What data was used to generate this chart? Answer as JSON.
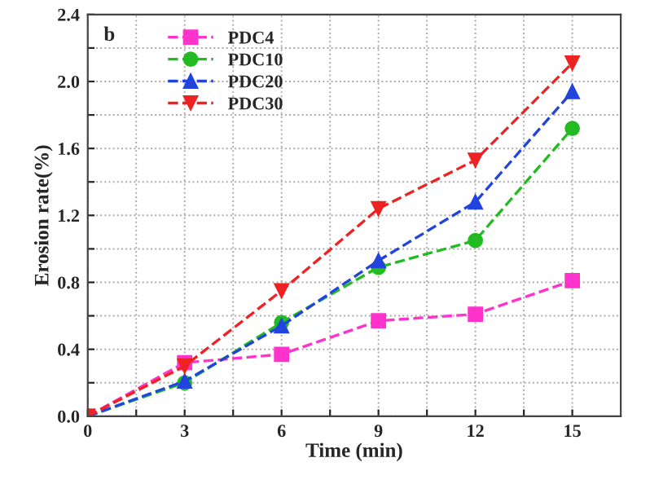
{
  "chart_data": {
    "type": "line",
    "xlabel": "Time (min)",
    "ylabel": "Erosion rate(%)",
    "annotations": [
      "b"
    ],
    "x": [
      0,
      3,
      6,
      9,
      12,
      15
    ],
    "xlim": [
      0,
      16.5
    ],
    "xticks": [
      0,
      {
        "value": 1.5,
        "label": null
      },
      3,
      {
        "value": 4.5,
        "label": null
      },
      6,
      {
        "value": 7.5,
        "label": null
      },
      9,
      {
        "value": 10.5,
        "label": null
      },
      12,
      {
        "value": 13.5,
        "label": null
      },
      15
    ],
    "ylim": [
      0,
      2.4
    ],
    "yticks": [
      {
        "value": 0,
        "label": "0.0"
      },
      {
        "value": 0.2,
        "label": null
      },
      0.4,
      {
        "value": 0.6,
        "label": null
      },
      0.8,
      {
        "value": 1.0,
        "label": null
      },
      1.2,
      {
        "value": 1.4,
        "label": null
      },
      1.6,
      {
        "value": 1.8,
        "label": null
      },
      {
        "value": 2.0,
        "label": "2.0"
      },
      {
        "value": 2.2,
        "label": null
      },
      2.4
    ],
    "grid": true,
    "legend": "top left",
    "line_style": "dashed",
    "series": [
      {
        "name": "PDC4",
        "color": "#ff33cc",
        "marker": "square",
        "values": [
          0,
          0.32,
          0.37,
          0.57,
          0.61,
          0.81
        ]
      },
      {
        "name": "PDC10",
        "color": "#22bb22",
        "marker": "circle",
        "values": [
          0,
          0.2,
          0.56,
          0.89,
          1.05,
          1.72
        ]
      },
      {
        "name": "PDC20",
        "color": "#2244dd",
        "marker": "triangle",
        "values": [
          0,
          0.21,
          0.54,
          0.93,
          1.28,
          1.94
        ]
      },
      {
        "name": "PDC30",
        "color": "#ee2222",
        "marker": "triangle_down",
        "values": [
          0,
          0.3,
          0.75,
          1.24,
          1.53,
          2.11
        ]
      }
    ]
  }
}
